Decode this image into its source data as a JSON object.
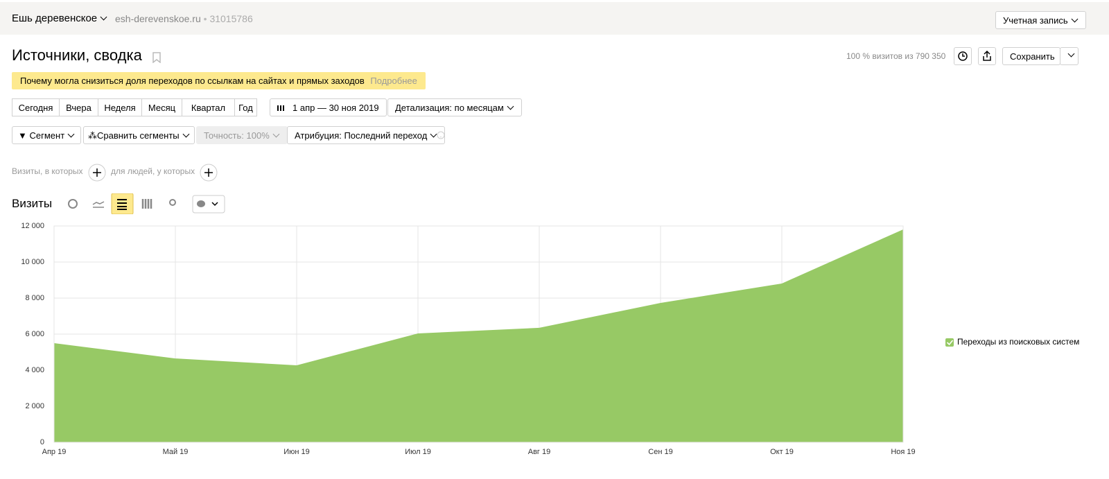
{
  "header": {
    "site_name": "Ешь деревенское",
    "domain": "esh-derevenskoe.ru",
    "separator": "•",
    "counter_id": "31015786",
    "account": "Учетная запись"
  },
  "report": {
    "title": "Источники, сводка",
    "visits_share": "100 % визитов из 790 350",
    "save": "Сохранить"
  },
  "notice": {
    "text": "Почему могла снизиться доля переходов по ссылкам на сайтах и прямых заходов",
    "link": "Подробнее"
  },
  "periods": [
    "Сегодня",
    "Вчера",
    "Неделя",
    "Месяц",
    "Квартал",
    "Год"
  ],
  "date_range": "1 апр — 30 ноя 2019",
  "detail": "Детализация: по месяцам",
  "filters": {
    "segment": "Сегмент",
    "compare": "Сравнить сегменты",
    "accuracy": "Точность: 100%",
    "attribution": "Атрибуция: Последний переход"
  },
  "conditions": {
    "visits": "Визиты, в которых",
    "people": "для людей, у которых"
  },
  "chart_data": {
    "type": "area",
    "title": "Визиты",
    "categories": [
      "Апр 19",
      "Май 19",
      "Июн 19",
      "Июл 19",
      "Авг 19",
      "Сен 19",
      "Окт 19",
      "Ноя 19"
    ],
    "series": [
      {
        "name": "Переходы из поисковых систем",
        "color": "#97c965",
        "values": [
          5500,
          4650,
          4270,
          6040,
          6350,
          7730,
          8810,
          11810
        ]
      }
    ],
    "ylim": [
      0,
      12000
    ],
    "yticks": [
      0,
      {
        "value": 2000,
        "label": "2 000"
      },
      {
        "value": 4000,
        "label": "4 000"
      },
      {
        "value": 6000,
        "label": "6 000"
      },
      {
        "value": 8000,
        "label": "8 000"
      },
      {
        "value": 10000,
        "label": "10 000"
      },
      {
        "value": 12000,
        "label": "12 000"
      }
    ],
    "grid": true,
    "legend": "right"
  }
}
